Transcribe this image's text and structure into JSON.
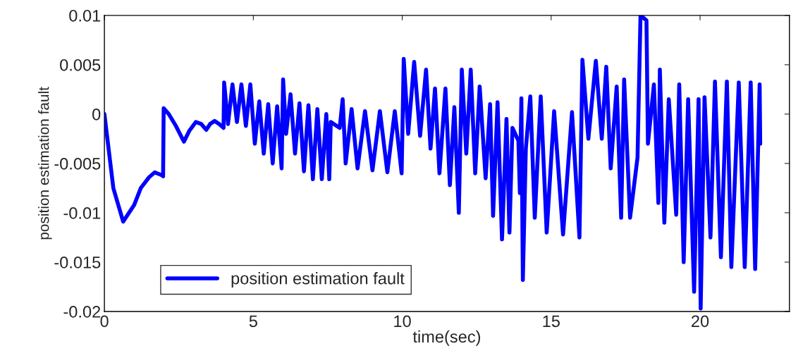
{
  "chart_data": {
    "type": "line",
    "xlabel": "time(sec)",
    "ylabel": "position estimation fault",
    "xlim": [
      0,
      23
    ],
    "xticks": [
      0,
      5,
      10,
      15,
      20
    ],
    "ylim": [
      -0.02,
      0.01
    ],
    "yticks": [
      -0.02,
      -0.015,
      -0.01,
      -0.005,
      0,
      0.005,
      0.01
    ],
    "grid": false,
    "legend": "bottom left",
    "marker": "none",
    "line_style": "solid",
    "series": [
      {
        "name": "position estimation fault",
        "color": "#0000ff",
        "x": [
          0,
          0.3,
          0.63,
          1.0,
          1.22,
          1.5,
          1.69,
          1.93,
          1.97,
          1.99,
          2.16,
          2.4,
          2.67,
          2.85,
          3.07,
          3.25,
          3.42,
          3.55,
          3.7,
          3.85,
          4.0,
          4.02,
          4.15,
          4.3,
          4.45,
          4.6,
          4.75,
          4.9,
          5.05,
          5.2,
          5.35,
          5.5,
          5.65,
          5.8,
          5.95,
          6.0,
          6.1,
          6.25,
          6.4,
          6.55,
          6.7,
          6.85,
          7.0,
          7.15,
          7.3,
          7.45,
          7.55,
          7.6,
          7.9,
          8.0,
          8.1,
          8.3,
          8.5,
          8.75,
          9.0,
          9.25,
          9.5,
          9.75,
          9.98,
          10.05,
          10.2,
          10.4,
          10.6,
          10.8,
          10.95,
          11.1,
          11.25,
          11.45,
          11.6,
          11.75,
          11.9,
          12.0,
          12.15,
          12.3,
          12.45,
          12.6,
          12.8,
          12.95,
          13.05,
          13.2,
          13.35,
          13.5,
          13.6,
          13.7,
          13.9,
          13.95,
          14.0,
          14.05,
          14.15,
          14.3,
          14.45,
          14.65,
          14.85,
          15.1,
          15.4,
          15.7,
          15.95,
          16.05,
          16.25,
          16.5,
          16.7,
          16.85,
          17.0,
          17.2,
          17.35,
          17.45,
          17.65,
          17.9,
          18.0,
          18.2,
          18.25,
          18.45,
          18.6,
          18.65,
          18.8,
          18.95,
          19.2,
          19.3,
          19.45,
          19.6,
          19.8,
          19.95,
          20.02,
          20.15,
          20.35,
          20.5,
          20.7,
          20.9,
          21.05,
          21.3,
          21.5,
          21.7,
          21.85,
          22.0,
          22.02
        ],
        "values": [
          0,
          -0.0075,
          -0.0109,
          -0.0092,
          -0.0075,
          -0.0064,
          -0.0059,
          -0.0062,
          -0.0063,
          0.0006,
          0.0,
          -0.0012,
          -0.0028,
          -0.0017,
          -0.0008,
          -0.001,
          -0.0016,
          -0.001,
          -0.0007,
          -0.001,
          -0.0014,
          0.0032,
          -0.001,
          0.003,
          -0.0008,
          0.003,
          -0.0012,
          0.003,
          -0.003,
          0.0013,
          -0.004,
          0.001,
          -0.005,
          0.0008,
          -0.0055,
          0.0035,
          -0.002,
          0.002,
          -0.004,
          0.0011,
          -0.0058,
          0.0009,
          -0.0066,
          0.0005,
          -0.0066,
          0.0,
          -0.0066,
          -0.0008,
          -0.0014,
          0.0015,
          -0.005,
          0.0005,
          -0.0055,
          0.0003,
          -0.0057,
          0.0003,
          -0.0059,
          0.0003,
          -0.006,
          0.0056,
          -0.002,
          0.0053,
          -0.0022,
          0.0045,
          -0.0035,
          0.0026,
          -0.006,
          0.0026,
          -0.0072,
          0.0007,
          -0.01,
          0.0045,
          -0.004,
          0.0045,
          -0.006,
          0.0028,
          -0.0065,
          0.001,
          -0.0103,
          0.0012,
          -0.0127,
          -0.0005,
          -0.012,
          -0.0014,
          -0.0027,
          -0.008,
          0.0016,
          -0.0168,
          -0.0035,
          0.0018,
          -0.0105,
          0.0018,
          -0.012,
          0.0003,
          -0.0122,
          0.0002,
          -0.0125,
          0.0055,
          -0.0025,
          0.0054,
          -0.0025,
          0.0048,
          -0.0055,
          0.0028,
          -0.0105,
          0.0035,
          -0.0105,
          -0.0044,
          0.01,
          0.0095,
          -0.003,
          0.003,
          -0.009,
          0.0045,
          -0.011,
          0.0015,
          -0.0102,
          0.003,
          -0.015,
          0.0015,
          -0.018,
          0.0015,
          -0.0197,
          0.0017,
          -0.0125,
          0.0033,
          -0.0145,
          0.0033,
          -0.0155,
          0.0032,
          -0.0155,
          0.0032,
          -0.0157,
          0.003,
          -0.003
        ]
      }
    ]
  }
}
